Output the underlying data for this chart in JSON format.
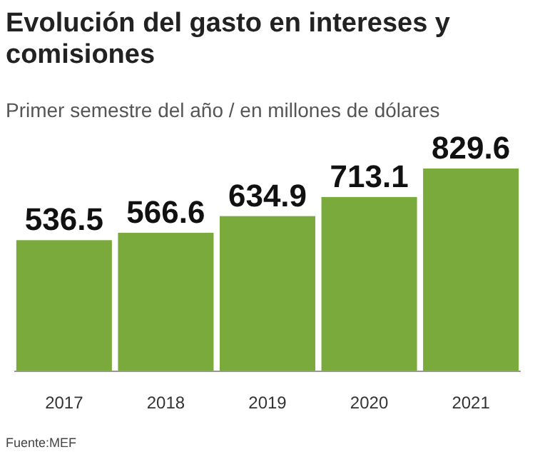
{
  "chart_data": {
    "type": "bar",
    "title": "Evolución del gasto en intereses y comisiones",
    "subtitle": "Primer semestre del año / en millones de dólares",
    "categories": [
      "2017",
      "2018",
      "2019",
      "2020",
      "2021"
    ],
    "values": [
      536.5,
      566.6,
      634.9,
      713.1,
      829.6
    ],
    "color": "#7aa93c",
    "data_labels": true,
    "annotations": [
      "Fuente:MEF"
    ]
  }
}
